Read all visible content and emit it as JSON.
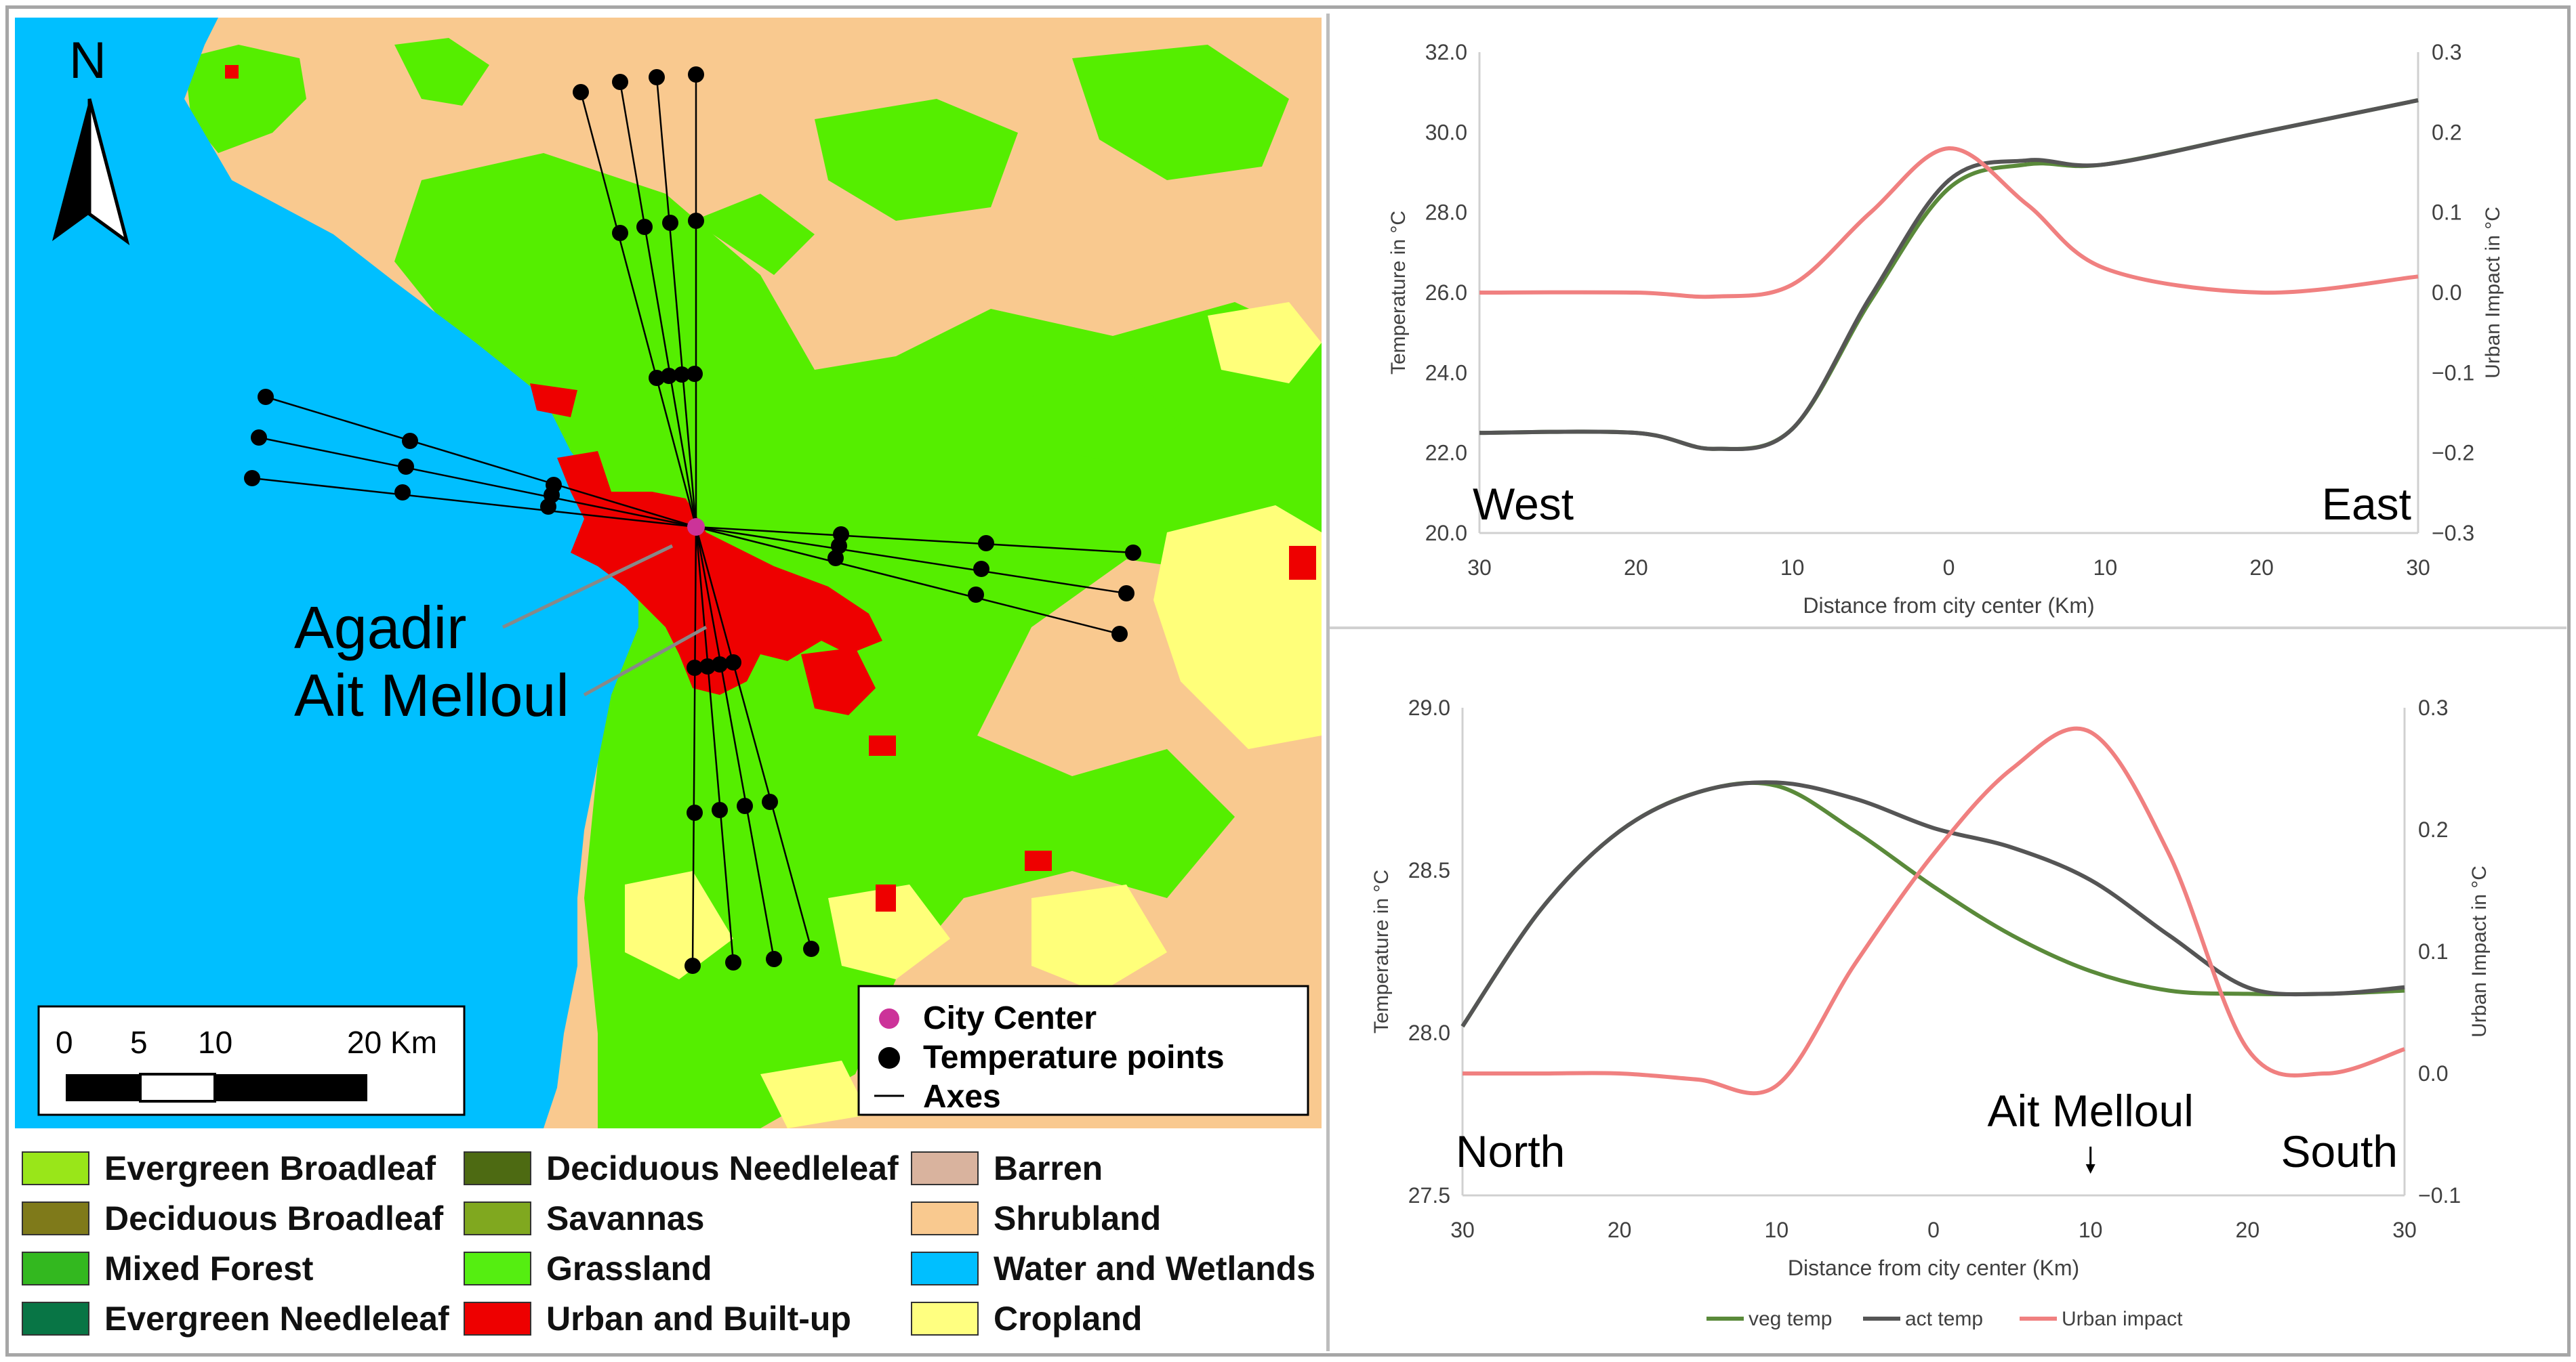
{
  "map": {
    "north_label": "N",
    "city_label_1": "Agadir",
    "city_label_2": "Ait Melloul",
    "scale": {
      "t0": "0",
      "t5": "5",
      "t10": "10",
      "t20": "20 Km"
    },
    "inset_legend": {
      "city_center": "City Center",
      "temp_points": "Temperature points",
      "axes": "Axes"
    },
    "colors": {
      "water": "#00bfff",
      "shrub": "#f9c98f",
      "grass": "#55ee00",
      "crop": "#ffff7a",
      "urban": "#ee0000",
      "center": "#cc3399"
    }
  },
  "landcover_legend": [
    {
      "label": "Evergreen Broadleaf",
      "color": "#99e619"
    },
    {
      "label": "Deciduous Broadleaf",
      "color": "#7f7a1a"
    },
    {
      "label": "Mixed Forest",
      "color": "#33b81f"
    },
    {
      "label": "Evergreen Needleleaf",
      "color": "#087545"
    },
    {
      "label": "Deciduous Needleleaf",
      "color": "#4d6a12"
    },
    {
      "label": "Savannas",
      "color": "#80a81f"
    },
    {
      "label": "Grassland",
      "color": "#55ee11"
    },
    {
      "label": "Urban and Built-up",
      "color": "#ee0000"
    },
    {
      "label": "Barren",
      "color": "#d9b39e"
    },
    {
      "label": "Shrubland",
      "color": "#f9c98f"
    },
    {
      "label": "Water and Wetlands",
      "color": "#00bfff"
    },
    {
      "label": "Cropland",
      "color": "#ffff80"
    }
  ],
  "chart_data": [
    {
      "type": "line",
      "title": "",
      "xlabel": "Distance from city center (Km)",
      "ylabel": "Temperature in °C",
      "y2label": "Urban Impact in °C",
      "x_tick_labels": [
        "30",
        "20",
        "10",
        "0",
        "10",
        "20",
        "30"
      ],
      "x": [
        -30,
        -20,
        -15,
        -10,
        -5,
        0,
        5,
        10,
        20,
        30
      ],
      "ylim": [
        20.0,
        32.0
      ],
      "y_ticks": [
        "20.0",
        "22.0",
        "24.0",
        "26.0",
        "28.0",
        "30.0",
        "32.0"
      ],
      "y2lim": [
        -0.3,
        0.3
      ],
      "y2_ticks": [
        "−0.3",
        "−0.2",
        "−0.1",
        "0.0",
        "0.1",
        "0.2",
        "0.3"
      ],
      "corner_labels": {
        "left": "West",
        "right": "East"
      },
      "series": [
        {
          "name": "veg temp",
          "axis": "left",
          "color": "#5a8a3a",
          "values": [
            22.5,
            22.5,
            22.1,
            22.6,
            25.8,
            28.6,
            29.2,
            29.2,
            30.0,
            30.8
          ]
        },
        {
          "name": "act temp",
          "axis": "left",
          "color": "#555555",
          "values": [
            22.5,
            22.5,
            22.1,
            22.6,
            25.9,
            28.8,
            29.3,
            29.2,
            30.0,
            30.8
          ]
        },
        {
          "name": "Urban impact",
          "axis": "right",
          "color": "#f08080",
          "values": [
            0.0,
            0.0,
            -0.005,
            0.01,
            0.1,
            0.18,
            0.11,
            0.03,
            0.0,
            0.02
          ]
        }
      ]
    },
    {
      "type": "line",
      "title": "",
      "xlabel": "Distance from city center (Km)",
      "ylabel": "Temperature in °C",
      "y2label": "Urban Impact in °C",
      "x_tick_labels": [
        "30",
        "20",
        "10",
        "0",
        "10",
        "20",
        "30"
      ],
      "x": [
        -30,
        -25,
        -20,
        -15,
        -10,
        -5,
        0,
        5,
        10,
        15,
        20,
        25,
        30
      ],
      "ylim": [
        27.5,
        29.0
      ],
      "y_ticks": [
        "27.5",
        "28.0",
        "28.5",
        "29.0"
      ],
      "y2lim": [
        -0.1,
        0.3
      ],
      "y2_ticks": [
        "−0.1",
        "0.0",
        "0.1",
        "0.2",
        "0.3"
      ],
      "corner_labels": {
        "left": "North",
        "right": "South"
      },
      "annotation": {
        "text": "Ait Melloul",
        "x": 10
      },
      "series": [
        {
          "name": "veg temp",
          "axis": "left",
          "color": "#5a8a3a",
          "values": [
            28.02,
            28.38,
            28.62,
            28.74,
            28.76,
            28.62,
            28.45,
            28.3,
            28.19,
            28.13,
            28.12,
            28.12,
            28.13
          ]
        },
        {
          "name": "act temp",
          "axis": "left",
          "color": "#555555",
          "values": [
            28.02,
            28.38,
            28.62,
            28.74,
            28.77,
            28.72,
            28.63,
            28.57,
            28.47,
            28.3,
            28.14,
            28.12,
            28.14
          ]
        },
        {
          "name": "Urban impact",
          "axis": "right",
          "color": "#f08080",
          "values": [
            0.0,
            0.0,
            0.0,
            -0.005,
            -0.01,
            0.09,
            0.18,
            0.25,
            0.28,
            0.18,
            0.02,
            0.0,
            0.02
          ]
        }
      ],
      "legend": [
        "veg temp",
        "act temp",
        "Urban impact"
      ]
    }
  ]
}
